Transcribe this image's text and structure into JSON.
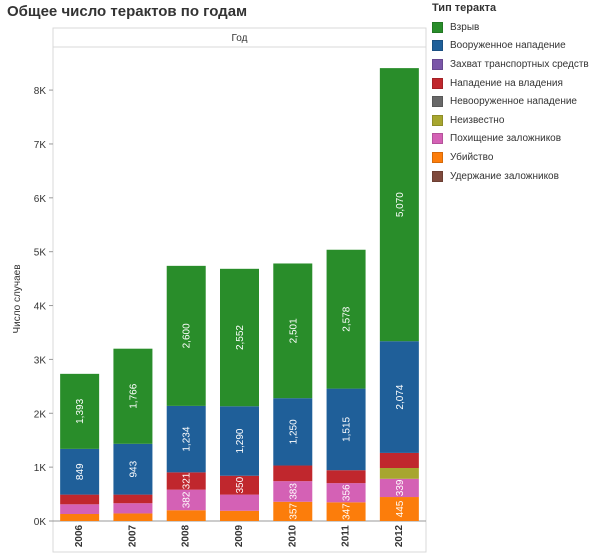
{
  "chart_data": {
    "type": "bar",
    "stacked": true,
    "title": "Общее число терактов по годам",
    "column_header": "Год",
    "ylabel": "Число случаев",
    "xlabel": "",
    "ylim": [
      0,
      8800
    ],
    "y_ticks": [
      0,
      1000,
      2000,
      3000,
      4000,
      5000,
      6000,
      7000,
      8000
    ],
    "y_tick_labels": [
      "0K",
      "1K",
      "2K",
      "3K",
      "4K",
      "5K",
      "6K",
      "7K",
      "8K"
    ],
    "grid": false,
    "legend_position": "right",
    "categories": [
      "2006",
      "2007",
      "2008",
      "2009",
      "2010",
      "2011",
      "2012"
    ],
    "series": [
      {
        "name": "Убийство",
        "color": "#fc7d0b",
        "values": [
          130,
          140,
          200,
          190,
          357,
          347,
          445
        ],
        "labels": [
          null,
          null,
          null,
          null,
          "357",
          "347",
          "445"
        ]
      },
      {
        "name": "Похищение заложников",
        "color": "#d461b5",
        "values": [
          180,
          190,
          382,
          300,
          383,
          356,
          339
        ],
        "labels": [
          null,
          null,
          "382",
          null,
          "383",
          "356",
          "339"
        ]
      },
      {
        "name": "Неизвестно",
        "color": "#a7a62f",
        "values": [
          0,
          0,
          0,
          0,
          0,
          0,
          200
        ],
        "labels": [
          null,
          null,
          null,
          null,
          null,
          null,
          null
        ]
      },
      {
        "name": "Нападение на владения",
        "color": "#c0272d",
        "values": [
          180,
          160,
          321,
          350,
          290,
          240,
          280
        ],
        "labels": [
          null,
          null,
          "321",
          "350",
          null,
          null,
          null
        ]
      },
      {
        "name": "Вооруженное нападение",
        "color": "#1f5f99",
        "values": [
          849,
          943,
          1234,
          1290,
          1250,
          1515,
          2074
        ],
        "labels": [
          "849",
          "943",
          "1,234",
          "1,290",
          "1,250",
          "1,515",
          "2,074"
        ]
      },
      {
        "name": "Взрыв",
        "color": "#298d2a",
        "values": [
          1393,
          1766,
          2600,
          2552,
          2501,
          2578,
          5070
        ],
        "labels": [
          "1,393",
          "1,766",
          "2,600",
          "2,552",
          "2,501",
          "2,578",
          "5,070"
        ]
      }
    ]
  },
  "legend": {
    "title": "Тип теракта",
    "items": [
      {
        "label": "Взрыв",
        "color": "#298d2a"
      },
      {
        "label": "Вооруженное нападение",
        "color": "#1f5f99"
      },
      {
        "label": "Захват транспортных средств",
        "color": "#7a56a8"
      },
      {
        "label": "Нападение на владения",
        "color": "#c0272d"
      },
      {
        "label": "Невооруженное нападение",
        "color": "#686868"
      },
      {
        "label": "Неизвестно",
        "color": "#a7a62f"
      },
      {
        "label": "Похищение заложников",
        "color": "#d461b5"
      },
      {
        "label": "Убийство",
        "color": "#fc7d0b"
      },
      {
        "label": "Удержание заложников",
        "color": "#7f4a3d"
      }
    ]
  }
}
